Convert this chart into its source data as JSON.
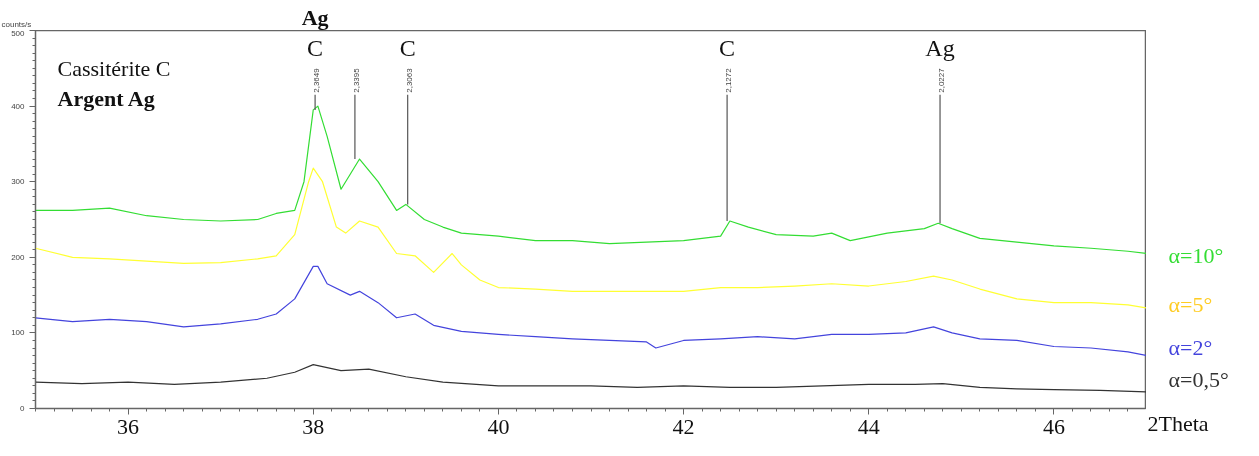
{
  "chart_data": {
    "type": "line",
    "ylabel": "counts/s",
    "xlim": [
      35,
      47
    ],
    "ylim": [
      0,
      500
    ],
    "xticks": [
      36,
      38,
      40,
      42,
      44,
      46
    ],
    "yticks": [
      0,
      100,
      200,
      300,
      400,
      500
    ],
    "grid": false,
    "legend": false,
    "marker": "none",
    "line_style": "solid",
    "series": [
      {
        "name": "α=10°",
        "color": "#33dd33",
        "x": [
          35.0,
          35.4,
          35.8,
          36.2,
          36.6,
          37.0,
          37.4,
          37.6,
          37.8,
          37.9,
          38.0,
          38.05,
          38.15,
          38.3,
          38.5,
          38.7,
          38.9,
          39.0,
          39.2,
          39.4,
          39.6,
          40.0,
          40.4,
          40.8,
          41.2,
          41.6,
          42.0,
          42.4,
          42.5,
          42.7,
          43.0,
          43.4,
          43.6,
          43.8,
          44.2,
          44.6,
          44.75,
          44.9,
          45.2,
          45.6,
          46.0,
          46.4,
          46.8,
          47.0
        ],
        "values": [
          262,
          262,
          265,
          255,
          250,
          248,
          250,
          258,
          262,
          300,
          395,
          400,
          360,
          290,
          330,
          300,
          262,
          270,
          250,
          240,
          232,
          228,
          222,
          222,
          218,
          220,
          222,
          228,
          248,
          240,
          230,
          228,
          232,
          222,
          232,
          238,
          245,
          238,
          225,
          220,
          215,
          212,
          208,
          205
        ]
      },
      {
        "name": "α=5°",
        "color": "#ffff33",
        "x": [
          35.0,
          35.4,
          35.8,
          36.2,
          36.6,
          37.0,
          37.4,
          37.6,
          37.8,
          37.95,
          38.0,
          38.1,
          38.25,
          38.35,
          38.5,
          38.7,
          38.9,
          39.1,
          39.3,
          39.5,
          39.6,
          39.8,
          40.0,
          40.4,
          40.8,
          41.2,
          41.6,
          42.0,
          42.4,
          42.8,
          43.2,
          43.6,
          44.0,
          44.4,
          44.7,
          44.9,
          45.2,
          45.6,
          46.0,
          46.4,
          46.8,
          47.0
        ],
        "values": [
          212,
          200,
          198,
          195,
          192,
          193,
          198,
          202,
          230,
          300,
          318,
          300,
          240,
          232,
          248,
          240,
          205,
          202,
          180,
          205,
          190,
          170,
          160,
          158,
          155,
          155,
          155,
          155,
          160,
          160,
          162,
          165,
          162,
          168,
          175,
          170,
          158,
          145,
          140,
          140,
          137,
          133
        ]
      },
      {
        "name": "α=2°",
        "color": "#4444dd",
        "x": [
          35.0,
          35.4,
          35.8,
          36.2,
          36.6,
          37.0,
          37.4,
          37.6,
          37.8,
          38.0,
          38.05,
          38.15,
          38.4,
          38.5,
          38.7,
          38.9,
          39.1,
          39.3,
          39.6,
          40.0,
          40.4,
          40.8,
          41.2,
          41.6,
          41.7,
          42.0,
          42.4,
          42.8,
          43.2,
          43.6,
          44.0,
          44.4,
          44.7,
          44.9,
          45.2,
          45.6,
          46.0,
          46.4,
          46.8,
          47.0
        ],
        "values": [
          120,
          115,
          118,
          115,
          108,
          112,
          118,
          125,
          145,
          188,
          188,
          165,
          150,
          155,
          140,
          120,
          125,
          110,
          102,
          98,
          95,
          92,
          90,
          88,
          80,
          90,
          92,
          95,
          92,
          98,
          98,
          100,
          108,
          100,
          92,
          90,
          82,
          80,
          75,
          70
        ]
      },
      {
        "name": "α=0,5°",
        "color": "#333333",
        "x": [
          35.0,
          35.5,
          36.0,
          36.5,
          37.0,
          37.5,
          37.8,
          38.0,
          38.3,
          38.6,
          39.0,
          39.4,
          40.0,
          40.5,
          41.0,
          41.5,
          42.0,
          42.5,
          43.0,
          43.5,
          44.0,
          44.5,
          44.8,
          45.2,
          45.6,
          46.0,
          46.5,
          47.0
        ],
        "values": [
          35,
          33,
          35,
          32,
          35,
          40,
          48,
          58,
          50,
          52,
          42,
          35,
          30,
          30,
          30,
          28,
          30,
          28,
          28,
          30,
          32,
          32,
          33,
          28,
          26,
          25,
          24,
          22
        ]
      }
    ],
    "ref_lines": [
      {
        "axis": "x",
        "value": 38.02,
        "label": "2,3649",
        "color": "#555555"
      },
      {
        "axis": "x",
        "value": 38.45,
        "label": "2,3395",
        "color": "#555555"
      },
      {
        "axis": "x",
        "value": 39.02,
        "label": "2,3063",
        "color": "#555555"
      },
      {
        "axis": "x",
        "value": 42.47,
        "label": "2,1272",
        "color": "#555555"
      },
      {
        "axis": "x",
        "value": 44.77,
        "label": "2,0227",
        "color": "#555555"
      }
    ],
    "annotations": [
      "Cassitérite C",
      "Argent Ag",
      "2Theta",
      {
        "text": "C",
        "x": 38.02,
        "y": 415
      },
      {
        "text": "Ag",
        "x": 38.02,
        "y": 415
      },
      {
        "text": "C",
        "x": 39.02,
        "y": 415
      },
      {
        "text": "C",
        "x": 42.47,
        "y": 415
      },
      {
        "text": "Ag",
        "x": 44.77,
        "y": 415
      }
    ]
  }
}
